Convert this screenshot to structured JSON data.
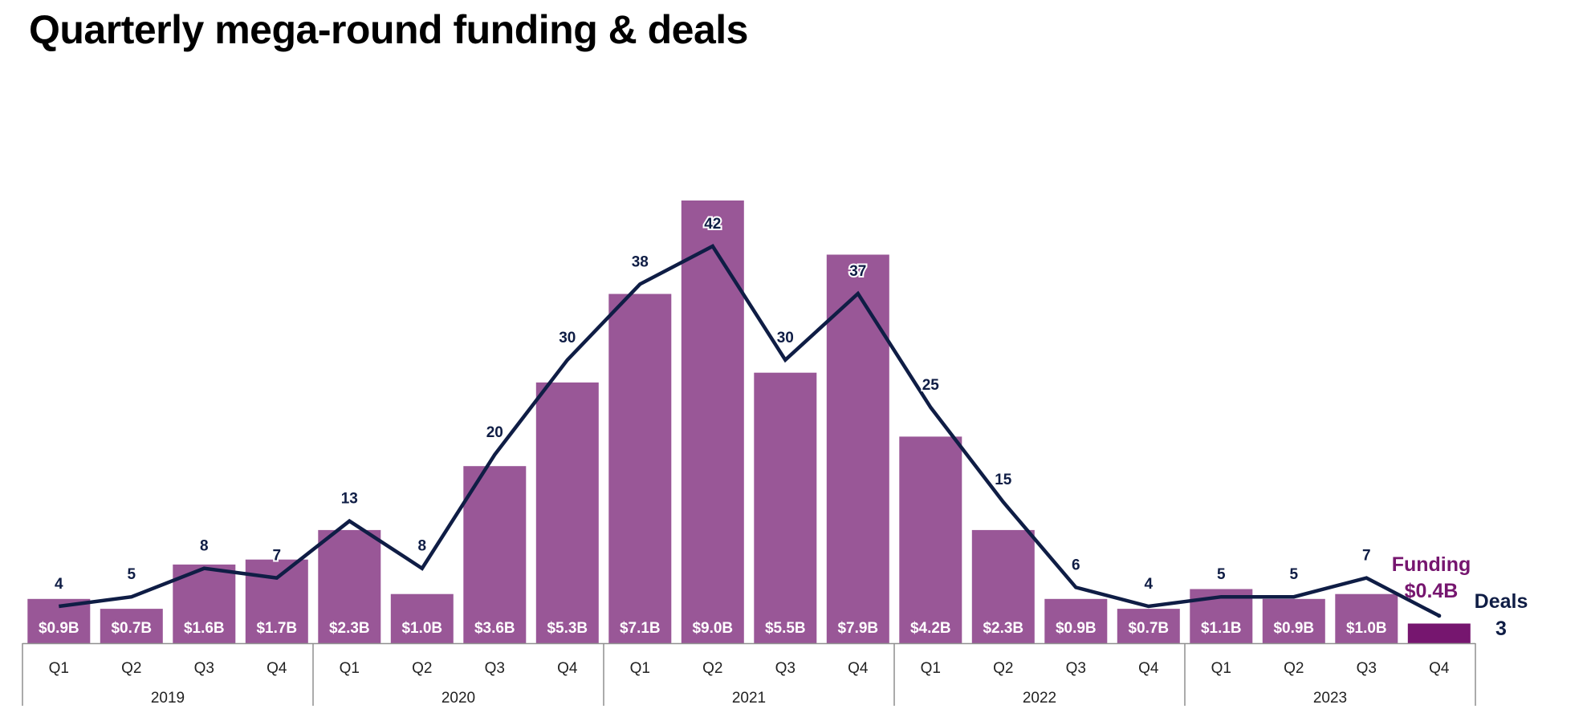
{
  "colors": {
    "bar": "#995797",
    "bar_highlight": "#76166f",
    "line": "#0f1d45",
    "bar_label": "#ffffff",
    "deal_label": "#0f1d45",
    "axis": "#8f8f8f",
    "title": "#000000"
  },
  "chart_data": {
    "type": "bar+line",
    "title": "Quarterly mega-round funding & deals",
    "categories": [
      "Q1",
      "Q2",
      "Q3",
      "Q4",
      "Q1",
      "Q2",
      "Q3",
      "Q4",
      "Q1",
      "Q2",
      "Q3",
      "Q4",
      "Q1",
      "Q2",
      "Q3",
      "Q4",
      "Q1",
      "Q2",
      "Q3",
      "Q4"
    ],
    "years": [
      "2019",
      "2020",
      "2021",
      "2022",
      "2023"
    ],
    "series": [
      {
        "name": "Funding",
        "unit": "$B",
        "type": "bar",
        "values": [
          0.9,
          0.7,
          1.6,
          1.7,
          2.3,
          1.0,
          3.6,
          5.3,
          7.1,
          9.0,
          5.5,
          7.9,
          4.2,
          2.3,
          0.9,
          0.7,
          1.1,
          0.9,
          1.0,
          0.4
        ],
        "labels": [
          "$0.9B",
          "$0.7B",
          "$1.6B",
          "$1.7B",
          "$2.3B",
          "$1.0B",
          "$3.6B",
          "$5.3B",
          "$7.1B",
          "$9.0B",
          "$5.5B",
          "$7.9B",
          "$4.2B",
          "$2.3B",
          "$0.9B",
          "$0.7B",
          "$1.1B",
          "$0.9B",
          "$1.0B",
          ""
        ]
      },
      {
        "name": "Deals",
        "type": "line",
        "values": [
          4,
          5,
          8,
          7,
          13,
          8,
          20,
          30,
          38,
          42,
          30,
          37,
          25,
          15,
          6,
          4,
          5,
          5,
          7,
          3
        ],
        "labels": [
          "4",
          "5",
          "8",
          "7",
          "13",
          "8",
          "20",
          "30",
          "38",
          "42",
          "30",
          "37",
          "25",
          "15",
          "6",
          "4",
          "5",
          "5",
          "7",
          ""
        ]
      }
    ],
    "funding_ylim": [
      0,
      9
    ],
    "deals_ylim": [
      0,
      42
    ],
    "annotations": {
      "funding_label": "Funding",
      "funding_value": "$0.4B",
      "deals_label": "Deals",
      "deals_value": "3"
    },
    "legend": "none",
    "grid": false
  }
}
